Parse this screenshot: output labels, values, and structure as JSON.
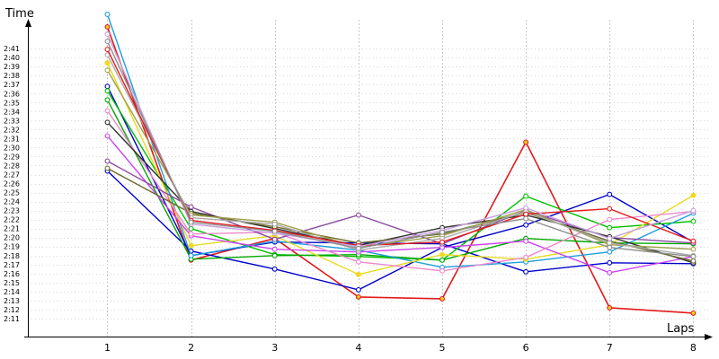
{
  "chart_data": {
    "type": "line",
    "title": "",
    "xlabel": "Laps",
    "ylabel": "Time",
    "x": [
      1,
      2,
      3,
      4,
      5,
      6,
      7,
      8
    ],
    "y_tick_labels": [
      "2:11",
      "2:12",
      "2:13",
      "2:14",
      "2:15",
      "2:16",
      "2:17",
      "2:18",
      "2:19",
      "2:20",
      "2:21",
      "2:22",
      "2:23",
      "2:24",
      "2:25",
      "2:26",
      "2:27",
      "2:28",
      "2:29",
      "2:30",
      "2:31",
      "2:32",
      "2:33",
      "2:34",
      "2:35",
      "2:36",
      "2:37",
      "2:38",
      "2:39",
      "2:40",
      "2:41"
    ],
    "y_tick_values": [
      131,
      132,
      133,
      134,
      135,
      136,
      137,
      138,
      139,
      140,
      141,
      142,
      143,
      144,
      145,
      146,
      147,
      148,
      149,
      150,
      151,
      152,
      153,
      154,
      155,
      156,
      157,
      158,
      159,
      160,
      161
    ],
    "ylim": [
      129,
      165
    ],
    "xlim": [
      0.05,
      8.2
    ],
    "grid": true,
    "legend": "none",
    "series": [
      {
        "color": "#e31a1c",
        "values": [
          163.4,
          137.5,
          139.9,
          133.4,
          133.2,
          150.6,
          132.2,
          131.6
        ]
      },
      {
        "color": "#0000cc",
        "values": [
          147.4,
          138.5,
          136.5,
          134.2,
          138.9,
          141.4,
          144.8,
          139.5
        ]
      },
      {
        "color": "#0000cc",
        "values": [
          156.8,
          138.0,
          139.5,
          139.4,
          139.3,
          136.2,
          137.2,
          137.1
        ]
      },
      {
        "color": "#00c000",
        "values": [
          156.3,
          141.0,
          138.1,
          137.9,
          137.5,
          144.6,
          141.1,
          141.8
        ]
      },
      {
        "color": "#00aa00",
        "values": [
          155.3,
          137.6,
          138.0,
          138.1,
          137.5,
          139.9,
          139.4,
          139.3
        ]
      },
      {
        "color": "#1e9edc",
        "values": [
          164.8,
          138.0,
          139.6,
          138.6,
          136.7,
          137.3,
          138.4,
          142.7
        ]
      },
      {
        "color": "#e6dc1e",
        "values": [
          159.4,
          139.1,
          140.2,
          135.9,
          138.1,
          137.6,
          139.2,
          144.7
        ]
      },
      {
        "color": "#cc44ee",
        "values": [
          151.3,
          140.2,
          138.7,
          138.4,
          138.9,
          139.6,
          136.1,
          137.9
        ]
      },
      {
        "color": "#ee88cc",
        "values": [
          154.1,
          140.4,
          140.6,
          137.3,
          136.3,
          137.8,
          142.0,
          142.9
        ]
      },
      {
        "color": "#8b4aa0",
        "values": [
          148.5,
          143.4,
          139.8,
          142.5,
          139.3,
          143.0,
          140.0,
          139.4
        ]
      },
      {
        "color": "#333333",
        "values": [
          152.8,
          142.9,
          141.0,
          139.1,
          141.1,
          142.5,
          140.1,
          137.2
        ]
      },
      {
        "color": "#6b6b2a",
        "values": [
          147.7,
          142.7,
          141.2,
          139.4,
          140.4,
          142.8,
          139.6,
          137.4
        ]
      },
      {
        "color": "#a0a050",
        "values": [
          158.6,
          142.5,
          141.7,
          138.9,
          140.2,
          143.1,
          139.2,
          138.7
        ]
      },
      {
        "color": "#aaaaaa",
        "values": [
          160.3,
          142.2,
          141.5,
          138.6,
          139.9,
          142.9,
          139.4,
          138.0
        ]
      },
      {
        "color": "#e31a1c",
        "values": [
          160.9,
          141.9,
          140.8,
          139.1,
          139.5,
          142.6,
          143.2,
          139.6
        ]
      },
      {
        "color": "#c8a0e0",
        "values": [
          162.6,
          141.5,
          140.5,
          139.0,
          140.8,
          143.3,
          139.9,
          143.0
        ]
      },
      {
        "color": "#8e8e8e",
        "values": [
          161.8,
          141.7,
          140.7,
          138.8,
          140.6,
          142.1,
          138.9,
          137.9
        ]
      }
    ]
  }
}
